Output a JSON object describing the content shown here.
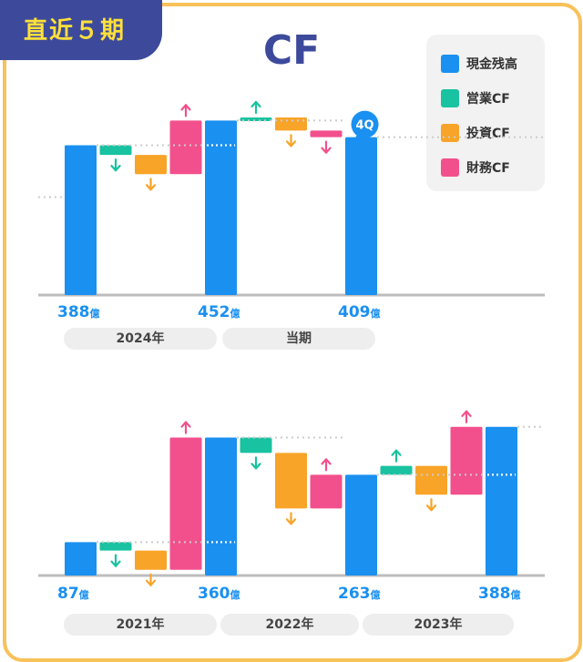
{
  "badge_text": "直近５期",
  "title": "CF",
  "legend": [
    {
      "label": "現金残高",
      "color": "#1a90f0"
    },
    {
      "label": "営業CF",
      "color": "#19c2a0"
    },
    {
      "label": "投資CF",
      "color": "#f8a428"
    },
    {
      "label": "財務CF",
      "color": "#f2508c"
    }
  ],
  "chart_data": [
    {
      "type": "bar",
      "subtype": "waterfall",
      "title": "",
      "unit": "億",
      "periods": [
        {
          "label": "2024年",
          "start": 388,
          "operating": -25,
          "investing": -50,
          "financing": 139,
          "end": 452
        },
        {
          "label": "当期",
          "start": 452,
          "operating": 8,
          "investing": -34,
          "financing": -17,
          "end": 409
        }
      ],
      "value_labels": [
        "388",
        "452",
        "409"
      ],
      "end_tag": "4Q",
      "ylim": [
        0,
        500
      ]
    },
    {
      "type": "bar",
      "subtype": "waterfall",
      "title": "",
      "unit": "億",
      "periods": [
        {
          "label": "2021年",
          "start": 87,
          "operating": -22,
          "investing": -50,
          "financing": 345,
          "end": 360
        },
        {
          "label": "2022年",
          "start": 360,
          "operating": -40,
          "investing": -145,
          "financing": 88,
          "end": 263
        },
        {
          "label": "2023年",
          "start": 263,
          "operating": 23,
          "investing": -75,
          "financing": 177,
          "end": 388
        }
      ],
      "value_labels": [
        "87",
        "360",
        "263",
        "388"
      ],
      "ylim": [
        0,
        435
      ]
    }
  ]
}
